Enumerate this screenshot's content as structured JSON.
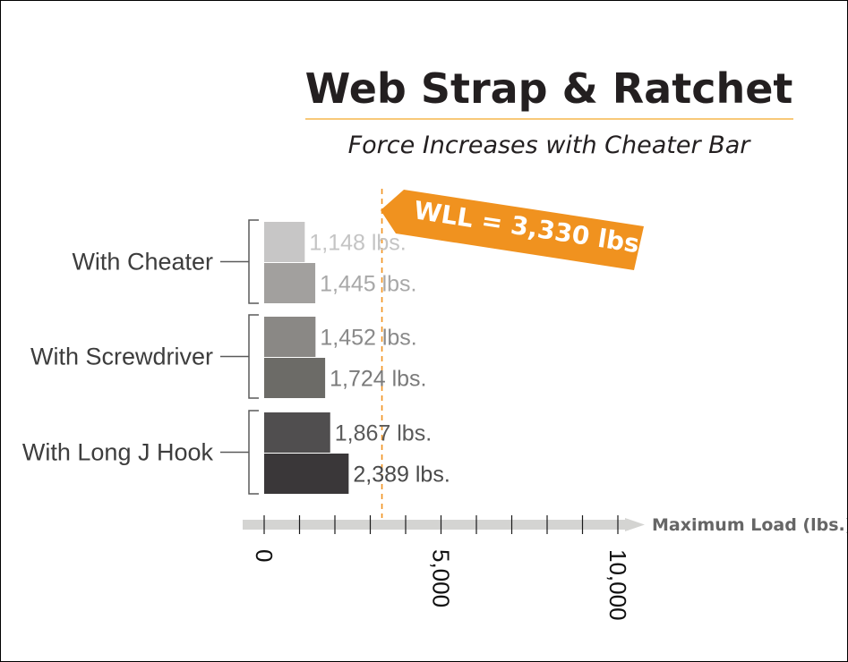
{
  "chart_data": {
    "type": "bar",
    "orientation": "horizontal",
    "title": "Web Strap & Ratchet",
    "subtitle": "Force Increases with Cheater Bar",
    "xlabel": "Maximum Load (lbs.)",
    "xlim": [
      0,
      10000
    ],
    "x_ticks": [
      0,
      5000,
      10000
    ],
    "x_tick_labels": [
      "0",
      "5,000",
      "10,000"
    ],
    "groups": [
      {
        "label": "With Cheater",
        "bars": [
          {
            "value": 1148,
            "label": "1,148 lbs.",
            "color": "#c7c6c6"
          },
          {
            "value": 1445,
            "label": "1,445 lbs.",
            "color": "#a2a09e"
          }
        ]
      },
      {
        "label": "With Screwdriver",
        "bars": [
          {
            "value": 1452,
            "label": "1,452 lbs.",
            "color": "#8a8885"
          },
          {
            "value": 1724,
            "label": "1,724 lbs.",
            "color": "#6c6b67"
          }
        ]
      },
      {
        "label": "With Long J Hook",
        "bars": [
          {
            "value": 1867,
            "label": "1,867 lbs.",
            "color": "#504e4f"
          },
          {
            "value": 2389,
            "label": "2,389 lbs.",
            "color": "#3a3739"
          }
        ]
      }
    ],
    "reference_line": {
      "value": 3330,
      "label": "WLL = 3,330 lbs.",
      "color": "#f0921f"
    },
    "grid": false,
    "legend": "none"
  },
  "colors": {
    "title_text": "#231f20",
    "title_rule": "#f5b74d",
    "axis": "#d4d4d2",
    "label_gray": "#3d3d3d",
    "accent": "#f0921f"
  }
}
